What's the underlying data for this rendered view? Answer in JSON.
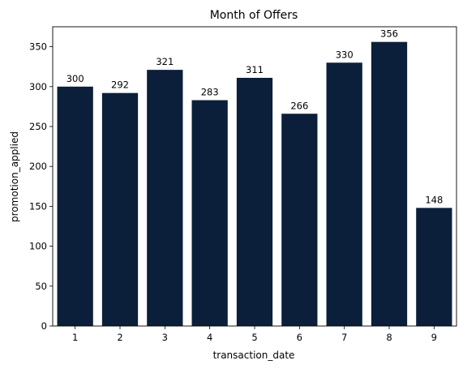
{
  "chart_data": {
    "type": "bar",
    "title": "Month of Offers",
    "xlabel": "transaction_date",
    "ylabel": "promotion_applied",
    "categories": [
      "1",
      "2",
      "3",
      "4",
      "5",
      "6",
      "7",
      "8",
      "9"
    ],
    "values": [
      300,
      292,
      321,
      283,
      311,
      266,
      330,
      356,
      148
    ],
    "ylim": [
      0,
      375
    ],
    "yticks": [
      0,
      50,
      100,
      150,
      200,
      250,
      300,
      350
    ],
    "bar_color": "#0b1f3a",
    "grid": false,
    "data_labels": true
  }
}
